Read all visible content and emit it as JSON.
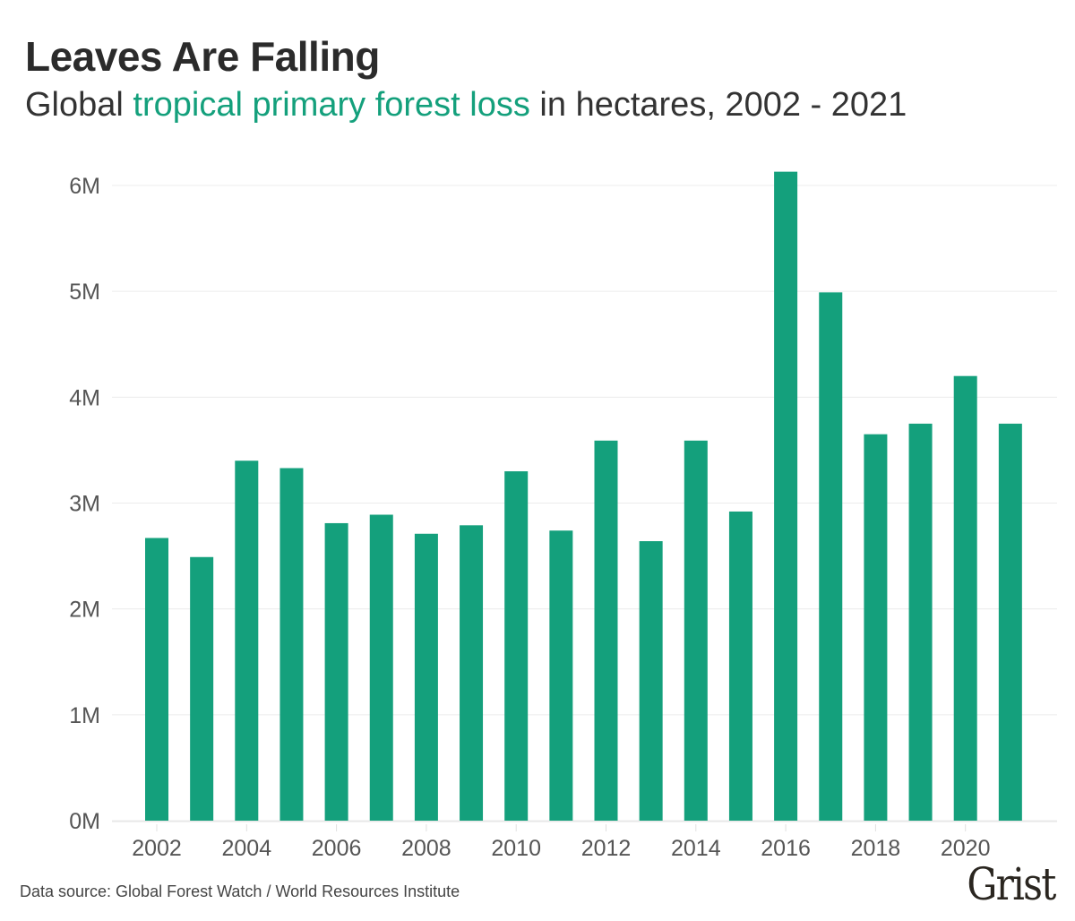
{
  "header": {
    "title": "Leaves Are Falling",
    "subtitle_pre": "Global ",
    "subtitle_highlight": "tropical primary forest loss",
    "subtitle_post": " in hectares, 2002 - 2021"
  },
  "footer": {
    "source": "Data source: Global Forest Watch / World Resources Institute",
    "logo": "Grist"
  },
  "colors": {
    "bar": "#14a07c",
    "highlight": "#14a07c",
    "grid": "#ececec"
  },
  "chart_data": {
    "type": "bar",
    "title": "Leaves Are Falling",
    "subtitle": "Global tropical primary forest loss in hectares, 2002 - 2021",
    "xlabel": "",
    "ylabel": "",
    "categories": [
      "2002",
      "2003",
      "2004",
      "2005",
      "2006",
      "2007",
      "2008",
      "2009",
      "2010",
      "2011",
      "2012",
      "2013",
      "2014",
      "2015",
      "2016",
      "2017",
      "2018",
      "2019",
      "2020",
      "2021"
    ],
    "values": [
      2.67,
      2.49,
      3.4,
      3.33,
      2.81,
      2.89,
      2.71,
      2.79,
      3.3,
      2.74,
      3.59,
      2.64,
      3.59,
      2.92,
      6.13,
      4.99,
      3.65,
      3.75,
      4.2,
      3.75
    ],
    "unit": "million hectares",
    "ylim": [
      0,
      6
    ],
    "y_ticks": [
      0,
      1,
      2,
      3,
      4,
      5,
      6
    ],
    "y_tick_labels": [
      "0M",
      "1M",
      "2M",
      "3M",
      "4M",
      "5M",
      "6M"
    ],
    "x_tick_labels": [
      "2002",
      "2004",
      "2006",
      "2008",
      "2010",
      "2012",
      "2014",
      "2016",
      "2018",
      "2020"
    ],
    "grid": true,
    "legend": "none"
  }
}
